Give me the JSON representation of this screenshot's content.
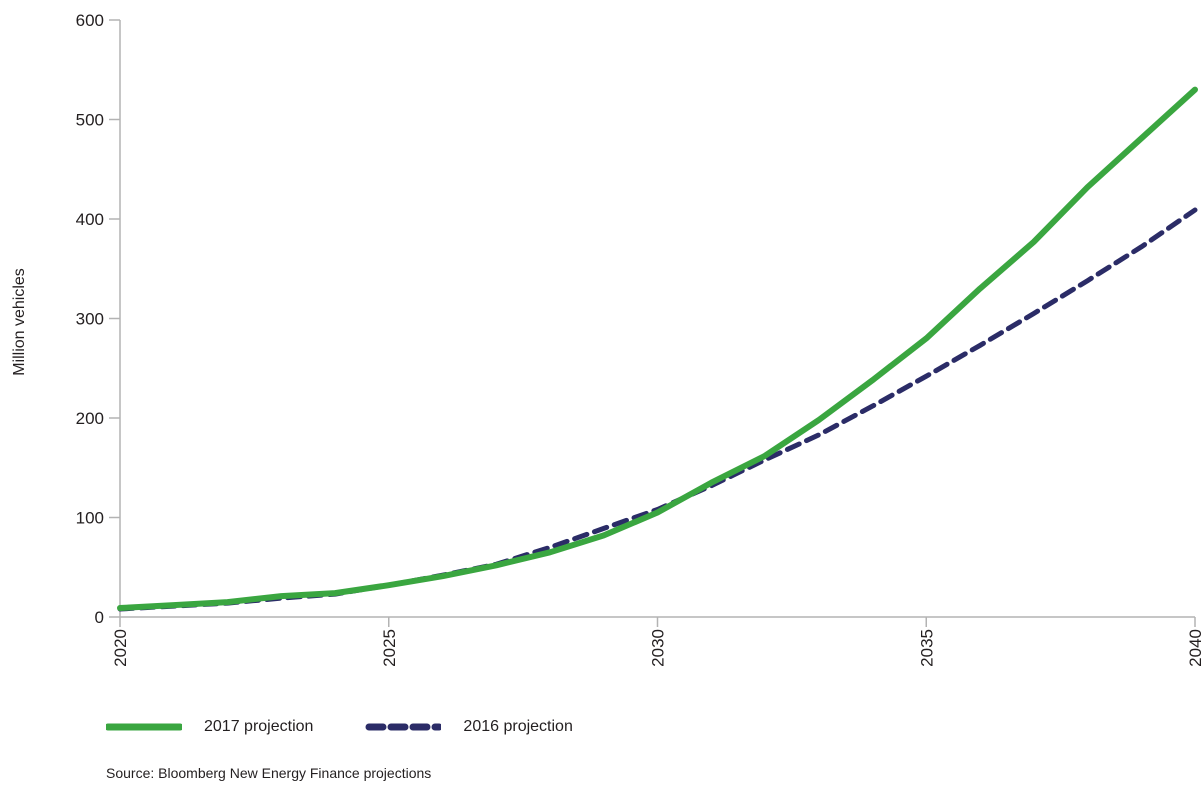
{
  "chart_data": {
    "type": "line",
    "ylabel": "Million vehicles",
    "xlabel": "",
    "xlim": [
      2020,
      2040
    ],
    "ylim": [
      0,
      600
    ],
    "x_ticks": [
      "2020",
      "2025",
      "2030",
      "2035",
      "2040"
    ],
    "y_ticks": [
      "0",
      "100",
      "200",
      "300",
      "400",
      "500",
      "600"
    ],
    "grid": false,
    "legend_position": "bottom-left",
    "series": [
      {
        "name": "2017 projection",
        "color": "#3aa640",
        "style": "solid",
        "x": [
          2020,
          2021,
          2022,
          2023,
          2024,
          2025,
          2026,
          2027,
          2028,
          2029,
          2030,
          2031,
          2032,
          2033,
          2034,
          2035,
          2036,
          2037,
          2038,
          2039,
          2040
        ],
        "y": [
          9,
          12,
          15,
          21,
          24,
          32,
          41,
          52,
          65,
          82,
          105,
          135,
          162,
          198,
          238,
          280,
          330,
          377,
          432,
          481,
          530
        ]
      },
      {
        "name": "2016 projection",
        "color": "#2b2c67",
        "style": "dashed",
        "x": [
          2020,
          2021,
          2022,
          2023,
          2024,
          2025,
          2026,
          2027,
          2028,
          2029,
          2030,
          2031,
          2032,
          2033,
          2034,
          2035,
          2036,
          2037,
          2038,
          2039,
          2040
        ],
        "y": [
          8,
          11,
          14,
          19,
          23,
          32,
          42,
          53,
          70,
          89,
          108,
          132,
          158,
          183,
          212,
          242,
          273,
          305,
          338,
          372,
          409
        ]
      }
    ],
    "source": "Source: Bloomberg New Energy Finance projections"
  }
}
